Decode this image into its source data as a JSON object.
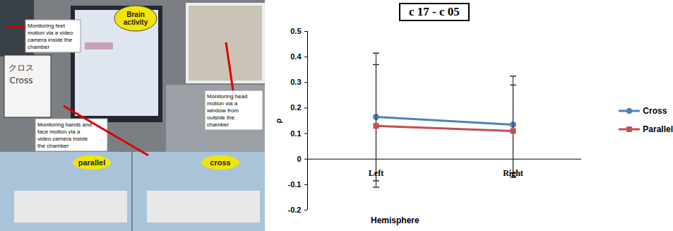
{
  "chart_data": {
    "type": "line",
    "title": "c 17 - c 05",
    "x_label": "Hemisphere",
    "y_label": "ρ",
    "categories": [
      "Left",
      "Right"
    ],
    "series": [
      {
        "name": "Cross",
        "color": "#4f81bd",
        "marker": "circle",
        "values": [
          0.165,
          0.135
        ],
        "error": [
          0.25,
          0.19
        ]
      },
      {
        "name": "Parallel",
        "color": "#c0504d",
        "marker": "square",
        "values": [
          0.13,
          0.11
        ],
        "error": [
          0.24,
          0.18
        ]
      }
    ],
    "ylim": [
      -0.2,
      0.5
    ],
    "yticks": [
      -0.2,
      -0.1,
      0,
      0.1,
      0.2,
      0.3,
      0.4,
      0.5
    ],
    "grid": false,
    "legend": "right"
  },
  "photo": {
    "brain_label": "Brain activity",
    "screen_text": [
      "クロス",
      "Cross"
    ],
    "annotations": {
      "feet": "Monitoring feet motion via a video camera inside the chamber",
      "hands": "Monitoring hands and face motion via a video camera inside the chamber",
      "head": "Monitoring head motion via a window from outside the chamber"
    },
    "conditions": [
      "parallel",
      "cross"
    ]
  }
}
